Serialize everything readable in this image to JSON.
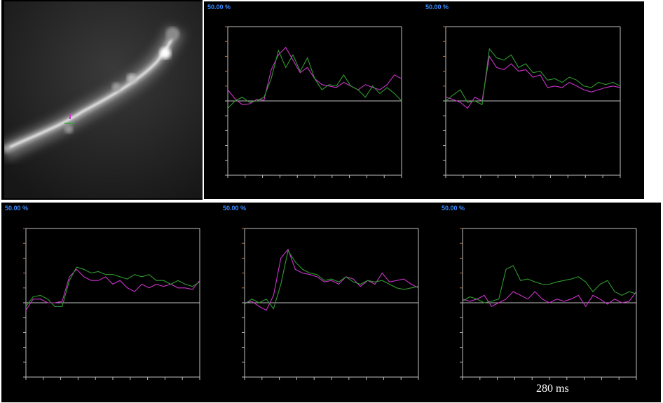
{
  "micrograph": {
    "roi_colors": {
      "magenta": "#cc33cc",
      "green": "#33aa33"
    },
    "bar_color": "#6a1aa8"
  },
  "panel_scale_label": "50.00 %",
  "caption": "280 ms",
  "colors": {
    "series_a": "#cc33cc",
    "series_b": "#2f9a2f",
    "frame": "#bfbfbf",
    "tick_up": "#b87a50",
    "tick_down": "#bfbfbf"
  },
  "chart_data": [
    {
      "type": "line",
      "scale_label": "50.00 %",
      "series": [
        {
          "values": [
            0.15,
            0.03,
            -0.05,
            -0.04,
            0.02,
            0.01,
            0.42,
            0.62,
            0.72,
            0.55,
            0.38,
            0.45,
            0.3,
            0.22,
            0.2,
            0.18,
            0.25,
            0.2,
            0.15,
            0.22,
            0.18,
            0.15,
            0.22,
            0.35,
            0.3
          ]
        },
        {
          "values": [
            -0.1,
            0.0,
            0.05,
            -0.02,
            0.0,
            0.05,
            0.3,
            0.68,
            0.45,
            0.62,
            0.4,
            0.58,
            0.3,
            0.15,
            0.22,
            0.2,
            0.35,
            0.2,
            0.15,
            0.05,
            0.2,
            0.1,
            0.18,
            0.1,
            0.0
          ]
        }
      ]
    },
    {
      "type": "line",
      "scale_label": "50.00 %",
      "series": [
        {
          "values": [
            0.05,
            0.02,
            -0.02,
            -0.1,
            0.05,
            0.0,
            0.6,
            0.45,
            0.42,
            0.5,
            0.4,
            0.42,
            0.32,
            0.35,
            0.18,
            0.2,
            0.18,
            0.25,
            0.2,
            0.15,
            0.12,
            0.15,
            0.18,
            0.2,
            0.18
          ]
        },
        {
          "values": [
            0.0,
            0.08,
            0.15,
            -0.02,
            0.0,
            -0.05,
            0.7,
            0.58,
            0.55,
            0.62,
            0.45,
            0.5,
            0.38,
            0.4,
            0.28,
            0.3,
            0.25,
            0.32,
            0.28,
            0.2,
            0.18,
            0.25,
            0.22,
            0.25,
            0.2
          ]
        }
      ]
    },
    {
      "type": "line",
      "scale_label": "50.00 %",
      "series": [
        {
          "values": [
            -0.1,
            0.05,
            0.05,
            0.0,
            0.0,
            0.02,
            0.35,
            0.45,
            0.35,
            0.3,
            0.3,
            0.35,
            0.25,
            0.3,
            0.2,
            0.15,
            0.25,
            0.2,
            0.25,
            0.22,
            0.25,
            0.2,
            0.2,
            0.18,
            0.3
          ]
        },
        {
          "values": [
            -0.05,
            0.08,
            0.1,
            0.05,
            -0.05,
            -0.05,
            0.3,
            0.48,
            0.45,
            0.4,
            0.42,
            0.38,
            0.38,
            0.35,
            0.32,
            0.38,
            0.35,
            0.38,
            0.3,
            0.3,
            0.25,
            0.3,
            0.25,
            0.22,
            0.28
          ]
        }
      ]
    },
    {
      "type": "line",
      "scale_label": "50.00 %",
      "series": [
        {
          "values": [
            0.0,
            0.02,
            -0.05,
            -0.1,
            0.1,
            0.6,
            0.72,
            0.45,
            0.4,
            0.38,
            0.35,
            0.28,
            0.3,
            0.25,
            0.35,
            0.32,
            0.22,
            0.3,
            0.25,
            0.4,
            0.28,
            0.3,
            0.32,
            0.25,
            0.2
          ]
        },
        {
          "values": [
            -0.02,
            0.05,
            0.0,
            0.05,
            -0.08,
            0.25,
            0.7,
            0.55,
            0.45,
            0.4,
            0.38,
            0.3,
            0.32,
            0.28,
            0.35,
            0.28,
            0.25,
            0.3,
            0.28,
            0.3,
            0.25,
            0.2,
            0.18,
            0.2,
            0.22
          ]
        }
      ]
    },
    {
      "type": "line",
      "scale_label": "50.00 %",
      "series": [
        {
          "values": [
            0.05,
            0.02,
            0.05,
            0.1,
            -0.05,
            0.0,
            0.05,
            0.15,
            0.1,
            0.05,
            0.15,
            0.05,
            0.0,
            0.05,
            0.02,
            0.05,
            0.1,
            -0.05,
            0.1,
            0.05,
            -0.02,
            0.05,
            0.0,
            0.02,
            0.15
          ]
        },
        {
          "values": [
            0.02,
            0.08,
            0.05,
            0.0,
            0.02,
            0.05,
            0.45,
            0.5,
            0.3,
            0.32,
            0.28,
            0.25,
            0.25,
            0.28,
            0.3,
            0.32,
            0.35,
            0.28,
            0.15,
            0.25,
            0.3,
            0.15,
            0.1,
            0.15,
            0.12
          ]
        }
      ]
    }
  ]
}
